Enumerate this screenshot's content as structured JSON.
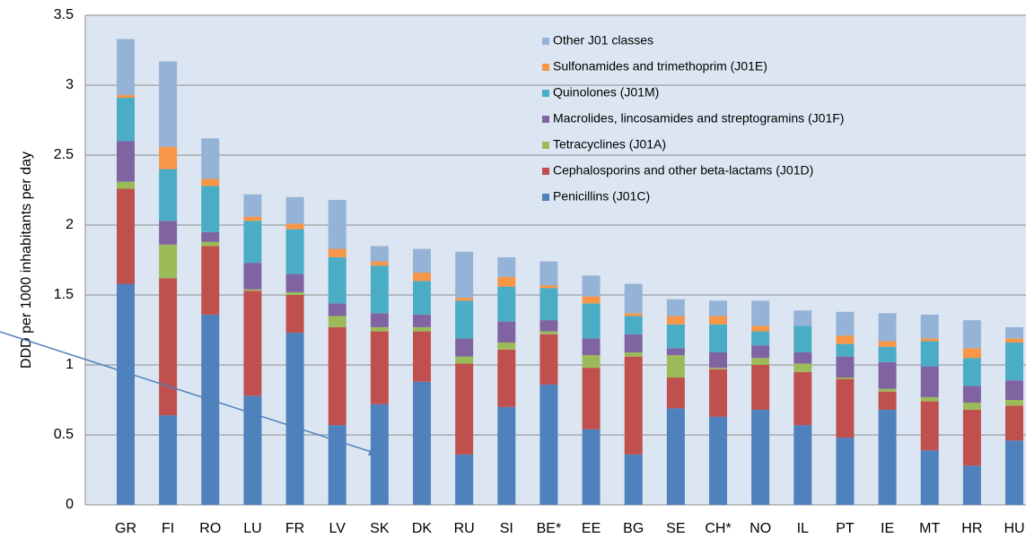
{
  "chart_data": {
    "type": "stacked_bar",
    "y_label": "DDD per 1000 inhabitants per day",
    "categories": [
      "GR",
      "FI",
      "RO",
      "LU",
      "FR",
      "LV",
      "SK",
      "DK",
      "RU",
      "SI",
      "BE*",
      "EE",
      "BG",
      "SE",
      "CH*",
      "NO",
      "IL",
      "PT",
      "IE",
      "MT",
      "HR",
      "HU"
    ],
    "series": [
      {
        "name": "Penicillins (J01C)",
        "color": "#4f81bd",
        "values": [
          1.58,
          0.64,
          1.36,
          0.78,
          1.23,
          0.57,
          0.72,
          0.88,
          0.36,
          0.7,
          0.86,
          0.54,
          0.36,
          0.69,
          0.63,
          0.68,
          0.57,
          0.48,
          0.68,
          0.39,
          0.28,
          0.46
        ]
      },
      {
        "name": "Cephalosporins and other beta-lactams (J01D)",
        "color": "#c0504d",
        "values": [
          0.68,
          0.98,
          0.49,
          0.75,
          0.27,
          0.7,
          0.52,
          0.36,
          0.65,
          0.41,
          0.36,
          0.44,
          0.7,
          0.22,
          0.34,
          0.32,
          0.38,
          0.42,
          0.13,
          0.35,
          0.4,
          0.25
        ]
      },
      {
        "name": "Tetracyclines (J01A)",
        "color": "#9bbb59",
        "values": [
          0.05,
          0.24,
          0.03,
          0.01,
          0.02,
          0.08,
          0.03,
          0.03,
          0.05,
          0.05,
          0.02,
          0.09,
          0.03,
          0.16,
          0.01,
          0.05,
          0.06,
          0.01,
          0.02,
          0.03,
          0.05,
          0.04
        ]
      },
      {
        "name": "Macrolides, lincosamides and streptogramins (J01F)",
        "color": "#8064a2",
        "values": [
          0.29,
          0.17,
          0.07,
          0.19,
          0.13,
          0.09,
          0.1,
          0.09,
          0.13,
          0.15,
          0.08,
          0.12,
          0.13,
          0.05,
          0.11,
          0.09,
          0.08,
          0.15,
          0.19,
          0.22,
          0.12,
          0.14
        ]
      },
      {
        "name": "Quinolones (J01M)",
        "color": "#4bacc6",
        "values": [
          0.31,
          0.37,
          0.33,
          0.3,
          0.32,
          0.33,
          0.34,
          0.24,
          0.27,
          0.25,
          0.23,
          0.25,
          0.13,
          0.17,
          0.2,
          0.1,
          0.19,
          0.09,
          0.11,
          0.18,
          0.2,
          0.27
        ]
      },
      {
        "name": "Sulfonamides and trimethoprim (J01E)",
        "color": "#f79646",
        "values": [
          0.02,
          0.16,
          0.05,
          0.03,
          0.04,
          0.06,
          0.03,
          0.06,
          0.02,
          0.07,
          0.02,
          0.05,
          0.02,
          0.06,
          0.06,
          0.04,
          0.0,
          0.06,
          0.04,
          0.02,
          0.07,
          0.03
        ]
      },
      {
        "name": "Other J01 classes",
        "color": "#95b3d7",
        "values": [
          0.4,
          0.61,
          0.29,
          0.16,
          0.19,
          0.35,
          0.11,
          0.17,
          0.33,
          0.14,
          0.17,
          0.15,
          0.21,
          0.12,
          0.11,
          0.18,
          0.11,
          0.17,
          0.2,
          0.17,
          0.2,
          0.08
        ]
      }
    ],
    "ylim": [
      0,
      3.5
    ],
    "yticks": [
      0,
      {
        "value": 0.5,
        "label": "0.5"
      },
      1,
      {
        "value": 1.5,
        "label": "1.5"
      },
      2,
      {
        "value": 2.5,
        "label": "2.5"
      },
      3,
      {
        "value": 3.5,
        "label": "3.5"
      }
    ],
    "grid": true,
    "legend": "upper right",
    "background": "#dce6f2"
  }
}
